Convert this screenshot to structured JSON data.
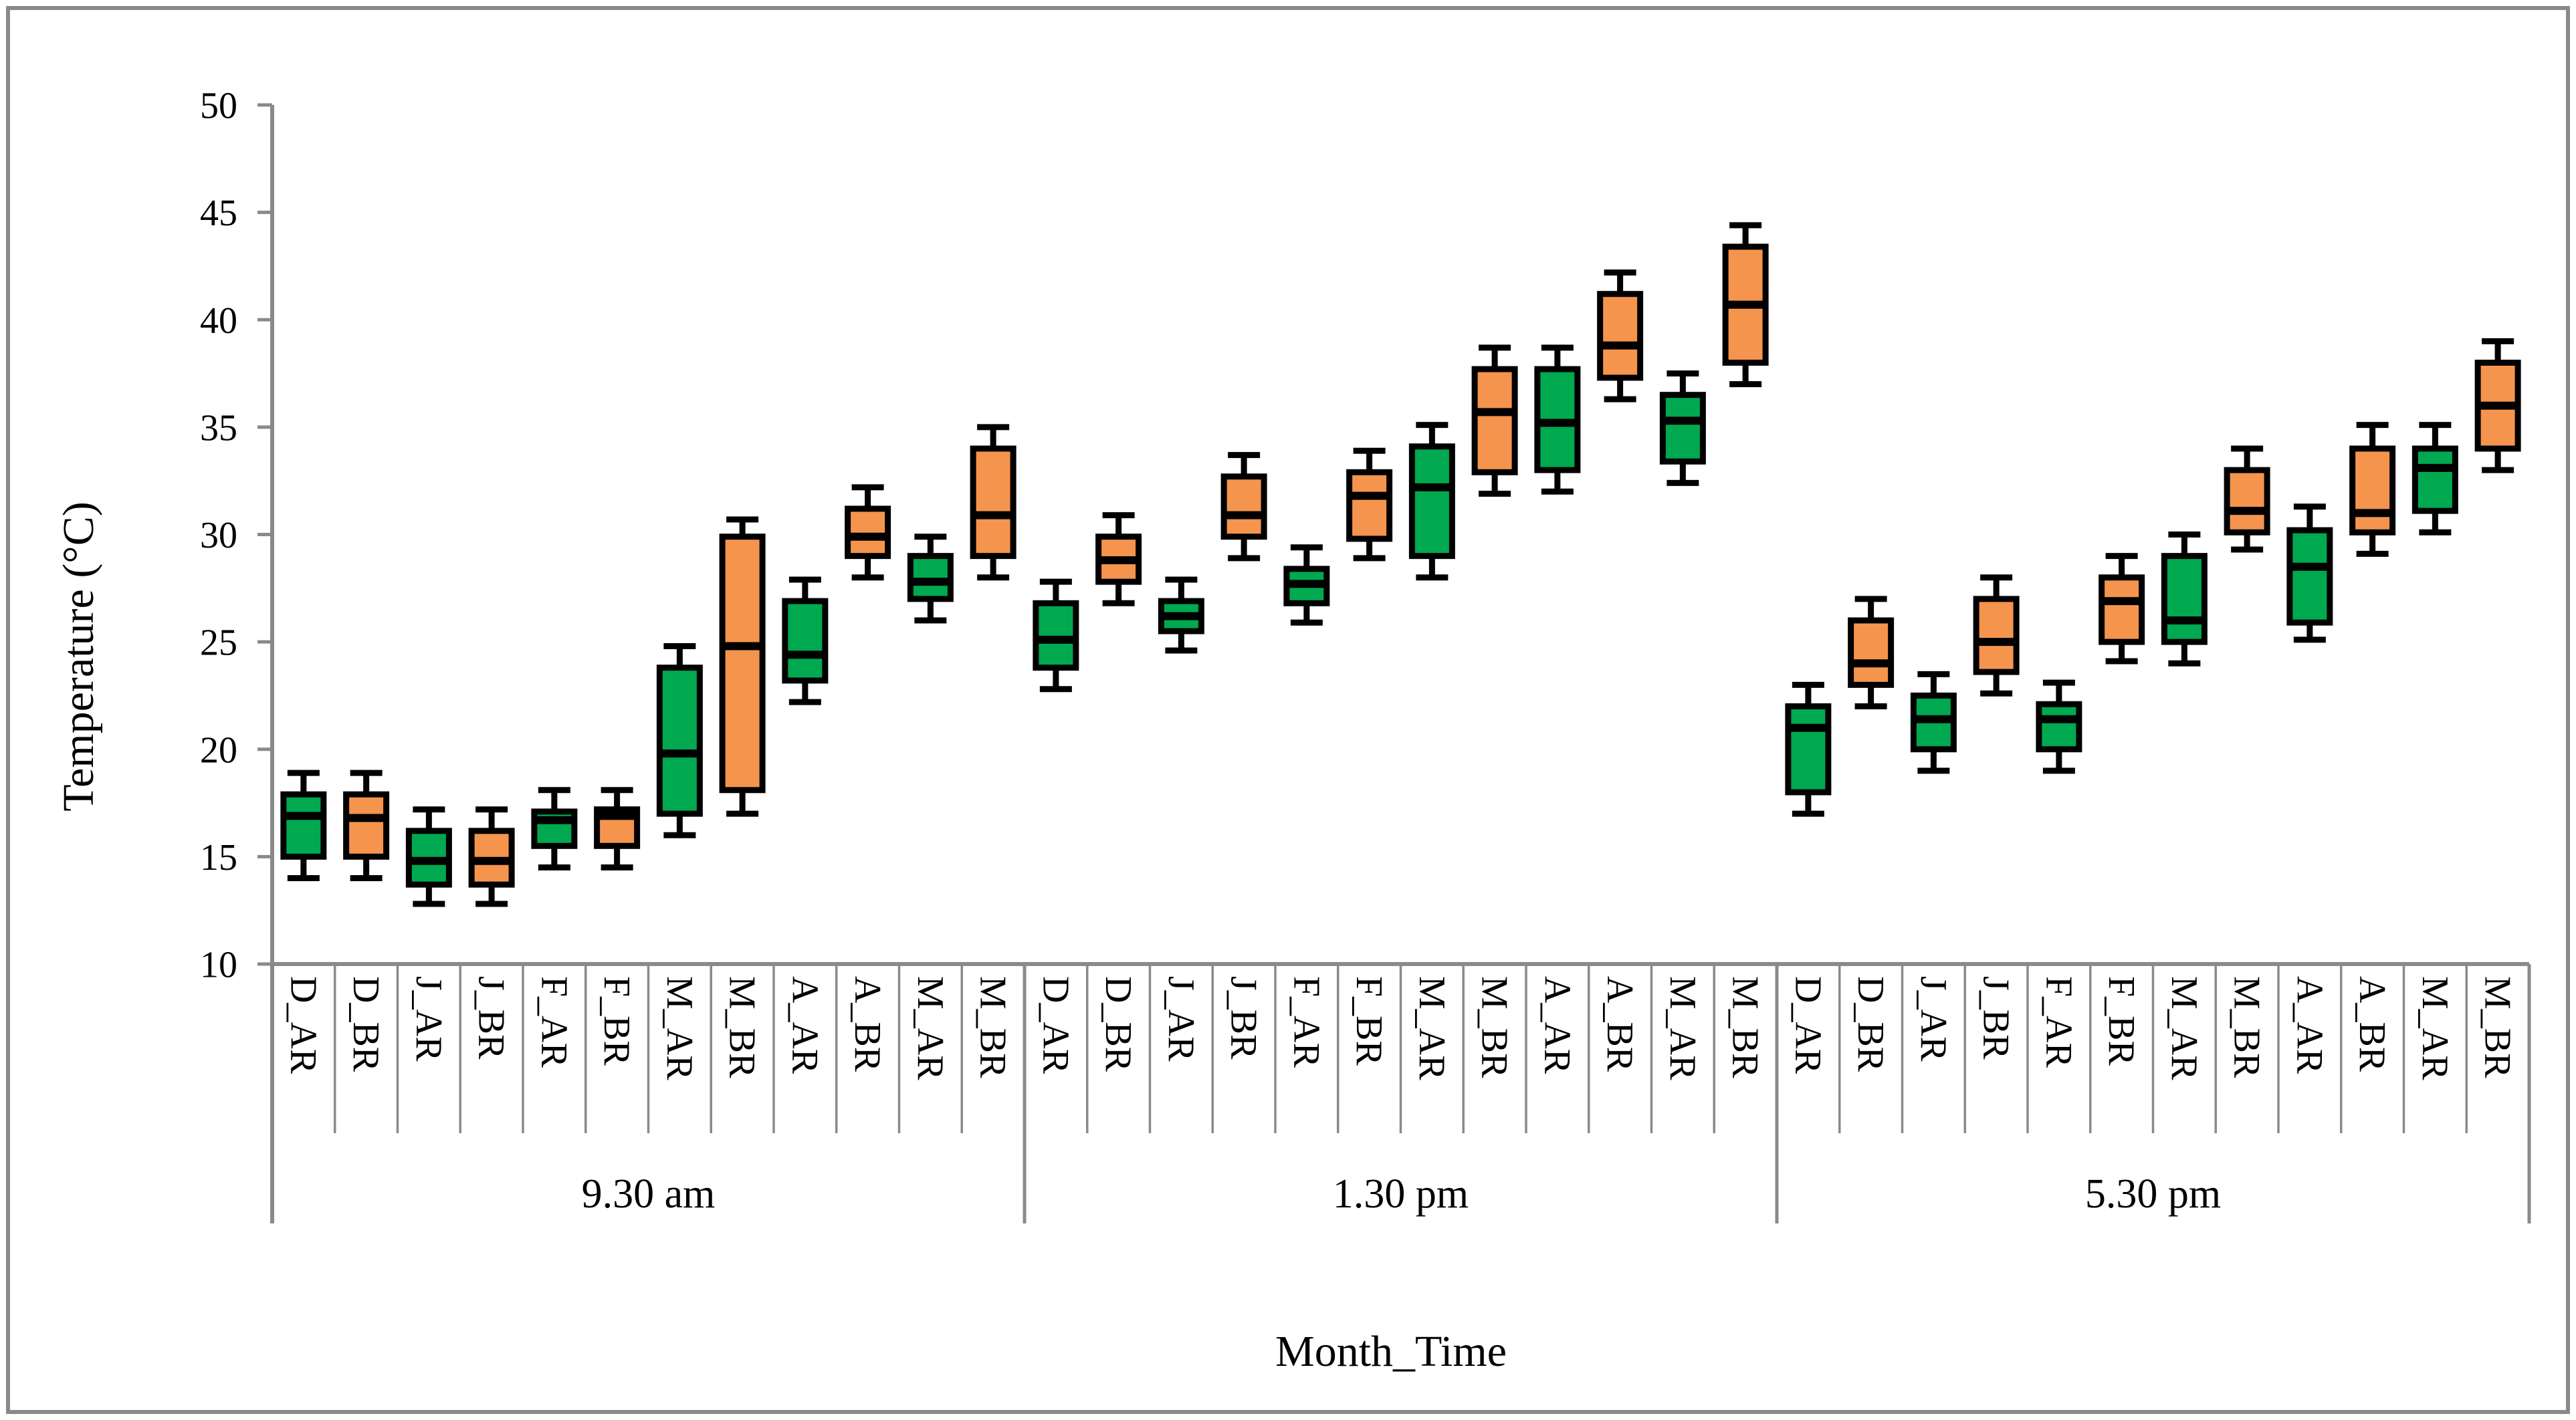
{
  "figure": {
    "background": "#ffffff",
    "border_color": "#8a8a8a"
  },
  "colors": {
    "AR": "#00A94F",
    "BR": "#F5944D",
    "box_stroke": "#000000",
    "axis": "#8a8a8a",
    "text": "#000000"
  },
  "y_axis": {
    "title": "Temperature (°C)",
    "ticks": [
      50,
      45,
      40,
      35,
      30,
      25,
      20,
      15,
      10
    ]
  },
  "x_axis": {
    "title": "Month_Time"
  },
  "chart_data": {
    "type": "boxplot",
    "title": "",
    "xlabel": "Month_Time",
    "ylabel": "Temperature (°C)",
    "ylim": [
      10,
      50
    ],
    "yticks": [
      10,
      15,
      20,
      25,
      30,
      35,
      40,
      45,
      50
    ],
    "grid": false,
    "legend_position": "none",
    "series_colors": {
      "AR": "#00A94F",
      "BR": "#F5944D"
    },
    "box_stats_order": [
      "low",
      "q1",
      "median",
      "q3",
      "high"
    ],
    "groups": [
      {
        "label": "9.30 am",
        "categories": [
          "D_AR",
          "D_BR",
          "J_AR",
          "J_BR",
          "F_AR",
          "F_BR",
          "M_AR",
          "M_BR",
          "A_AR",
          "A_BR",
          "M_AR",
          "M_BR"
        ],
        "series": [
          "AR",
          "BR",
          "AR",
          "BR",
          "AR",
          "BR",
          "AR",
          "BR",
          "AR",
          "BR",
          "AR",
          "BR"
        ],
        "values": [
          [
            14.0,
            15.0,
            16.9,
            17.9,
            18.9
          ],
          [
            14.0,
            15.0,
            16.8,
            17.9,
            18.9
          ],
          [
            12.8,
            13.7,
            14.8,
            16.2,
            17.2
          ],
          [
            12.8,
            13.7,
            14.8,
            16.2,
            17.2
          ],
          [
            14.5,
            15.5,
            16.7,
            17.1,
            18.1
          ],
          [
            14.5,
            15.5,
            16.9,
            17.2,
            18.1
          ],
          [
            16.0,
            17.0,
            19.8,
            23.8,
            24.8
          ],
          [
            17.0,
            18.1,
            24.8,
            29.9,
            30.7
          ],
          [
            22.2,
            23.2,
            24.4,
            26.9,
            27.9
          ],
          [
            28.0,
            29.0,
            29.9,
            31.2,
            32.2
          ],
          [
            26.0,
            27.0,
            27.8,
            29.0,
            29.9
          ],
          [
            28.0,
            29.0,
            30.9,
            34.0,
            35.0
          ]
        ]
      },
      {
        "label": "1.30 pm",
        "categories": [
          "D_AR",
          "D_BR",
          "J_AR",
          "J_BR",
          "F_AR",
          "F_BR",
          "M_AR",
          "M_BR",
          "A_AR",
          "A_BR",
          "M_AR",
          "M_BR"
        ],
        "series": [
          "AR",
          "BR",
          "AR",
          "BR",
          "AR",
          "BR",
          "AR",
          "BR",
          "AR",
          "BR",
          "AR",
          "BR"
        ],
        "values": [
          [
            22.8,
            23.8,
            25.1,
            26.8,
            27.8
          ],
          [
            26.8,
            27.8,
            28.8,
            29.9,
            30.9
          ],
          [
            24.6,
            25.5,
            26.2,
            26.9,
            27.9
          ],
          [
            28.9,
            29.9,
            30.9,
            32.7,
            33.7
          ],
          [
            25.9,
            26.8,
            27.7,
            28.4,
            29.4
          ],
          [
            28.9,
            29.8,
            31.8,
            32.9,
            33.9
          ],
          [
            28.0,
            29.0,
            32.2,
            34.1,
            35.1
          ],
          [
            31.9,
            32.9,
            35.7,
            37.7,
            38.7
          ],
          [
            32.0,
            33.0,
            35.2,
            37.7,
            38.7
          ],
          [
            36.3,
            37.3,
            38.8,
            41.2,
            42.2
          ],
          [
            32.4,
            33.4,
            35.3,
            36.5,
            37.5
          ],
          [
            37.0,
            38.0,
            40.7,
            43.4,
            44.4
          ]
        ]
      },
      {
        "label": "5.30 pm",
        "categories": [
          "D_AR",
          "D_BR",
          "J_AR",
          "J_BR",
          "F_AR",
          "F_BR",
          "M_AR",
          "M_BR",
          "A_AR",
          "A_BR",
          "M_AR",
          "M_BR"
        ],
        "series": [
          "AR",
          "BR",
          "AR",
          "BR",
          "AR",
          "BR",
          "AR",
          "BR",
          "AR",
          "BR",
          "AR",
          "BR"
        ],
        "values": [
          [
            17.0,
            18.0,
            21.0,
            22.0,
            23.0
          ],
          [
            22.0,
            23.0,
            24.0,
            26.0,
            27.0
          ],
          [
            19.0,
            20.0,
            21.4,
            22.5,
            23.5
          ],
          [
            22.6,
            23.6,
            25.0,
            27.0,
            28.0
          ],
          [
            19.0,
            20.0,
            21.4,
            22.1,
            23.1
          ],
          [
            24.1,
            25.0,
            26.9,
            28.0,
            29.0
          ],
          [
            24.0,
            25.0,
            26.0,
            29.0,
            30.0
          ],
          [
            29.3,
            30.1,
            31.1,
            33.0,
            34.0
          ],
          [
            25.1,
            25.9,
            28.5,
            30.2,
            31.3
          ],
          [
            29.1,
            30.1,
            31.0,
            34.0,
            35.1
          ],
          [
            30.1,
            31.1,
            33.1,
            34.0,
            35.1
          ],
          [
            33.0,
            34.0,
            36.0,
            38.0,
            39.0
          ]
        ]
      }
    ]
  }
}
